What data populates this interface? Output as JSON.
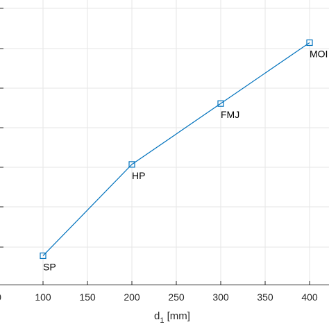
{
  "chart_data": {
    "type": "line",
    "x": [
      100,
      200,
      300,
      400
    ],
    "series": [
      {
        "values": [
          1.9,
          4.75,
          6.65,
          8.55
        ],
        "point_labels": [
          "SP",
          "HP",
          "FMJ",
          "MOI"
        ]
      }
    ],
    "xlim": [
      50,
      450
    ],
    "ylim": [
      1,
      9.6
    ],
    "xticks": [
      "0",
      "100",
      "150",
      "200",
      "250",
      "300",
      "350",
      "400"
    ],
    "xlabel": {
      "main": "d",
      "sub": "1",
      "unit": " [mm]"
    },
    "grid": true,
    "line_color": "#0072bd",
    "marker": "square"
  }
}
